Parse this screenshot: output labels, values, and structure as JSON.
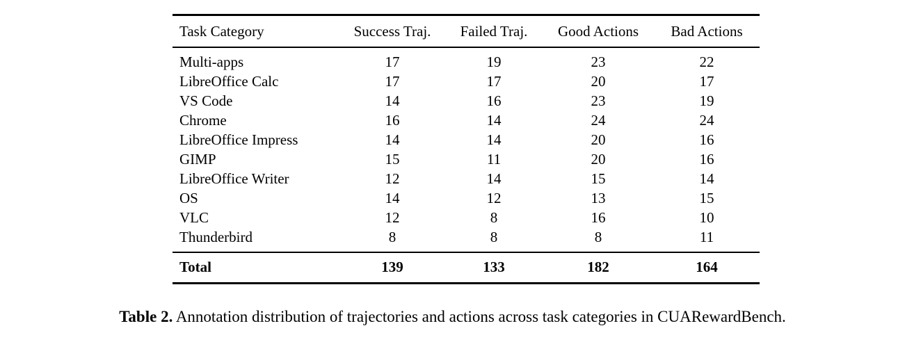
{
  "table": {
    "columns": [
      "Task Category",
      "Success Traj.",
      "Failed Traj.",
      "Good Actions",
      "Bad Actions"
    ],
    "rows": [
      {
        "category": "Multi-apps",
        "success": "17",
        "failed": "19",
        "good": "23",
        "bad": "22"
      },
      {
        "category": "LibreOffice Calc",
        "success": "17",
        "failed": "17",
        "good": "20",
        "bad": "17"
      },
      {
        "category": "VS Code",
        "success": "14",
        "failed": "16",
        "good": "23",
        "bad": "19"
      },
      {
        "category": "Chrome",
        "success": "16",
        "failed": "14",
        "good": "24",
        "bad": "24"
      },
      {
        "category": "LibreOffice Impress",
        "success": "14",
        "failed": "14",
        "good": "20",
        "bad": "16"
      },
      {
        "category": "GIMP",
        "success": "15",
        "failed": "11",
        "good": "20",
        "bad": "16"
      },
      {
        "category": "LibreOffice Writer",
        "success": "12",
        "failed": "14",
        "good": "15",
        "bad": "14"
      },
      {
        "category": "OS",
        "success": "14",
        "failed": "12",
        "good": "13",
        "bad": "15"
      },
      {
        "category": "VLC",
        "success": "12",
        "failed": "8",
        "good": "16",
        "bad": "10"
      },
      {
        "category": "Thunderbird",
        "success": "8",
        "failed": "8",
        "good": "8",
        "bad": "11"
      }
    ],
    "total": {
      "category": "Total",
      "success": "139",
      "failed": "133",
      "good": "182",
      "bad": "164"
    }
  },
  "caption": {
    "label": "Table 2.",
    "text": "Annotation distribution of trajectories and actions across task categories in CUARewardBench."
  },
  "colors": {
    "background": "#ffffff",
    "text": "#000000",
    "rule": "#000000"
  }
}
